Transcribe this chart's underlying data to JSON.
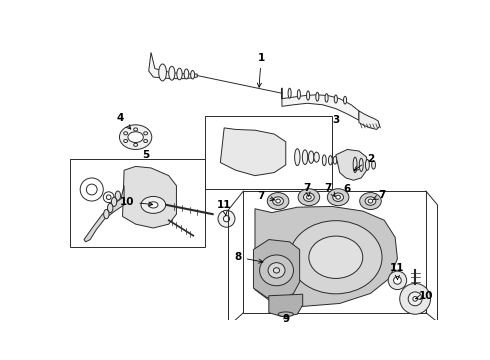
{
  "bg_color": "#ffffff",
  "lc": "#2a2a2a",
  "figsize": [
    4.9,
    3.6
  ],
  "dpi": 100
}
